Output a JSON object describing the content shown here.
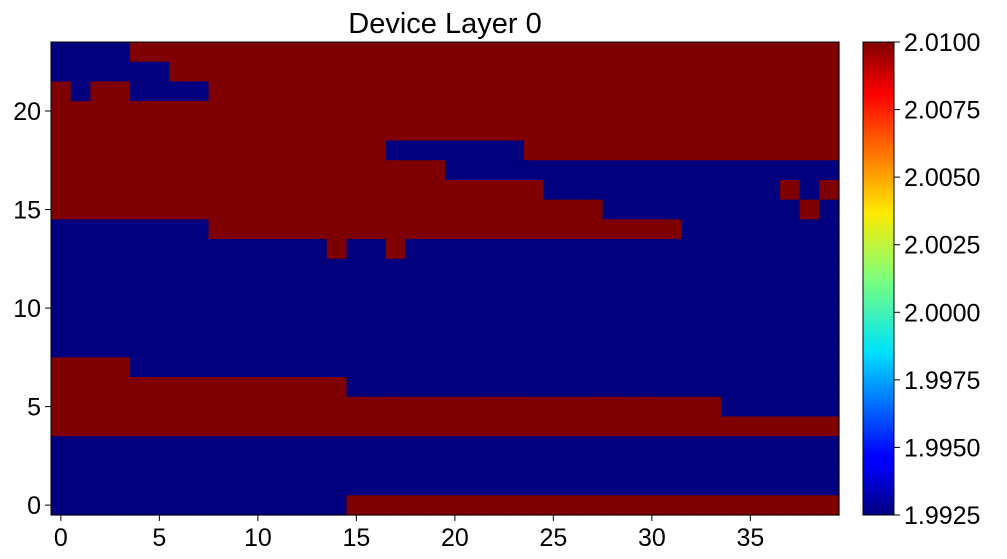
{
  "chart_data": {
    "type": "heatmap",
    "title": "Device Layer 0",
    "xlabel": "",
    "ylabel": "",
    "x_ticks": [
      0,
      5,
      10,
      15,
      20,
      25,
      30,
      35
    ],
    "y_ticks": [
      0,
      5,
      10,
      15,
      20
    ],
    "xlim": [
      -0.5,
      39.5
    ],
    "ylim": [
      -0.5,
      23.5
    ],
    "colorbar": {
      "colormap": "jet",
      "min": 1.9925,
      "max": 2.01,
      "ticks": [
        "2.0100",
        "2.0075",
        "2.0050",
        "2.0025",
        "2.0000",
        "1.9975",
        "1.9950",
        "1.9925"
      ]
    },
    "low_value": 1.9925,
    "high_value": 2.01,
    "low_color": "#00007f",
    "high_color": "#7f0000",
    "legend_rows_top_to_bottom": "one string per row y=23..0; '0' = low value (1.9925), '1' = high value (2.0100); each string has 40 columns x=0..39",
    "grid_rows_top_to_bottom": [
      "0000111111111111111111111111111111111111",
      "0000001111111111111111111111111111111111",
      "1011000011111111111111111111111111111111",
      "1111111111111111111111111111111111111111",
      "1111111111111111111111111111111111111111",
      "1111111111111111100000001111111111111111",
      "1111111111111111111100000000000000000000",
      "1111111111111111111111111000000000000101",
      "1111111111111111111111111111000000000010",
      "0000000011111111111111111111111100000000",
      "0000000000000010010000000000000000000000",
      "0000000000000000000000000000000000000000",
      "0000000000000000000000000000000000000000",
      "0000000000000000000000000000000000000000",
      "0000000000000000000000000000000000000000",
      "0000000000000000000000000000000000000000",
      "1111000000000000000000000000000000000000",
      "1111111111111110000000000000000000000000",
      "1111111111111111111111111111111111000000",
      "1111111111111111111111111111111111111111",
      "0000000000000000000000000000000000000000",
      "0000000000000000000000000000000000000000",
      "0000000000000000000000000000000000000000",
      "0000000000000001111111111111111111111111"
    ]
  }
}
